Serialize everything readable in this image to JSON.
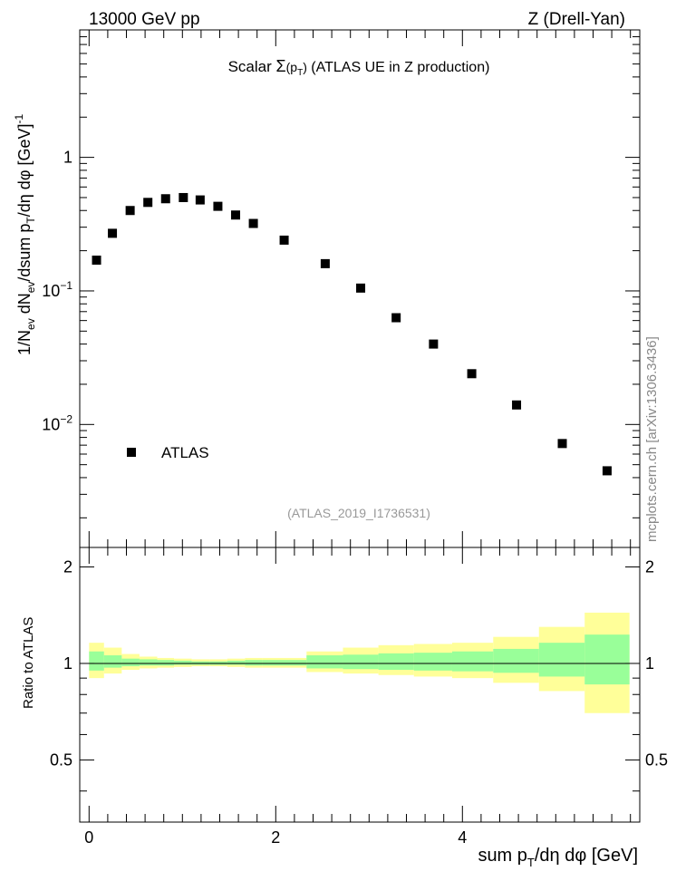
{
  "header": {
    "left": "13000 GeV pp",
    "right": "Z (Drell-Yan)"
  },
  "main_title": {
    "prefix": "Scalar ",
    "sigma": "Σ",
    "arg_open": "(p",
    "arg_sub": "T",
    "arg_close": ")",
    "suffix": " (ATLAS UE in Z production)"
  },
  "ylabel_main": {
    "p1": "1/N",
    "p1_sub": "ev",
    "p2": " dN",
    "p2_sub": "ev",
    "p3": "/dsum p",
    "p3_sub": "T",
    "p4": "/dη dφ  [GeV]",
    "p4_sup": "-1"
  },
  "ylabel_ratio": "Ratio to ATLAS",
  "xlabel": {
    "p1": "sum p",
    "p1_sub": "T",
    "p2": "/dη dφ [GeV]"
  },
  "legend_label": "ATLAS",
  "analysis_id": "(ATLAS_2019_I1736531)",
  "watermark": "mcplots.cern.ch [arXiv:1306.3436]",
  "main_ticks": [
    {
      "value": 1,
      "label": "1"
    },
    {
      "value": 0.1,
      "base": "10",
      "exp": "−1"
    },
    {
      "value": 0.01,
      "base": "10",
      "exp": "−2"
    }
  ],
  "ratio_ticks": [
    {
      "value": 2,
      "label": "2"
    },
    {
      "value": 1,
      "label": "1"
    },
    {
      "value": 0.5,
      "label": "0.5"
    }
  ],
  "x_ticks": [
    {
      "value": 0,
      "label": "0"
    },
    {
      "value": 2,
      "label": "2"
    },
    {
      "value": 4,
      "label": "4"
    }
  ],
  "colors": {
    "band_outer": "#ffff99",
    "band_inner": "#99ff99",
    "marker": "#000000",
    "watermark": "#888888"
  },
  "chart_data": {
    "type": "scatter",
    "x_range": [
      -0.1,
      5.9
    ],
    "main_ylim": [
      0.0012,
      9.0
    ],
    "main_yscale": "log",
    "ratio_ylim": [
      0.32,
      2.3
    ],
    "ratio_yscale": "log",
    "series": [
      {
        "name": "ATLAS",
        "x": [
          0.08,
          0.25,
          0.44,
          0.63,
          0.82,
          1.01,
          1.19,
          1.38,
          1.57,
          1.76,
          2.09,
          2.53,
          2.91,
          3.29,
          3.69,
          4.1,
          4.58,
          5.07,
          5.55
        ],
        "y": [
          0.17,
          0.27,
          0.4,
          0.46,
          0.49,
          0.5,
          0.48,
          0.43,
          0.37,
          0.32,
          0.24,
          0.16,
          0.105,
          0.063,
          0.04,
          0.024,
          0.014,
          0.0072,
          0.0045
        ]
      }
    ],
    "ratio_bands": {
      "x_edges": [
        0.0,
        0.16,
        0.35,
        0.54,
        0.73,
        0.91,
        1.1,
        1.29,
        1.48,
        1.67,
        1.86,
        2.33,
        2.72,
        3.1,
        3.48,
        3.89,
        4.33,
        4.82,
        5.31,
        5.79
      ],
      "outer_low": [
        0.9,
        0.93,
        0.955,
        0.965,
        0.97,
        0.975,
        0.98,
        0.98,
        0.975,
        0.97,
        0.97,
        0.94,
        0.93,
        0.92,
        0.91,
        0.9,
        0.87,
        0.82,
        0.7
      ],
      "outer_high": [
        1.16,
        1.12,
        1.07,
        1.05,
        1.04,
        1.035,
        1.03,
        1.03,
        1.035,
        1.04,
        1.04,
        1.09,
        1.12,
        1.14,
        1.15,
        1.16,
        1.21,
        1.3,
        1.44
      ],
      "inner_low": [
        0.95,
        0.97,
        0.98,
        0.985,
        0.985,
        0.99,
        0.99,
        0.99,
        0.99,
        0.985,
        0.985,
        0.965,
        0.96,
        0.955,
        0.95,
        0.945,
        0.935,
        0.91,
        0.86
      ],
      "inner_high": [
        1.09,
        1.06,
        1.035,
        1.03,
        1.025,
        1.02,
        1.015,
        1.015,
        1.02,
        1.025,
        1.025,
        1.06,
        1.065,
        1.075,
        1.08,
        1.09,
        1.11,
        1.16,
        1.23
      ]
    }
  }
}
